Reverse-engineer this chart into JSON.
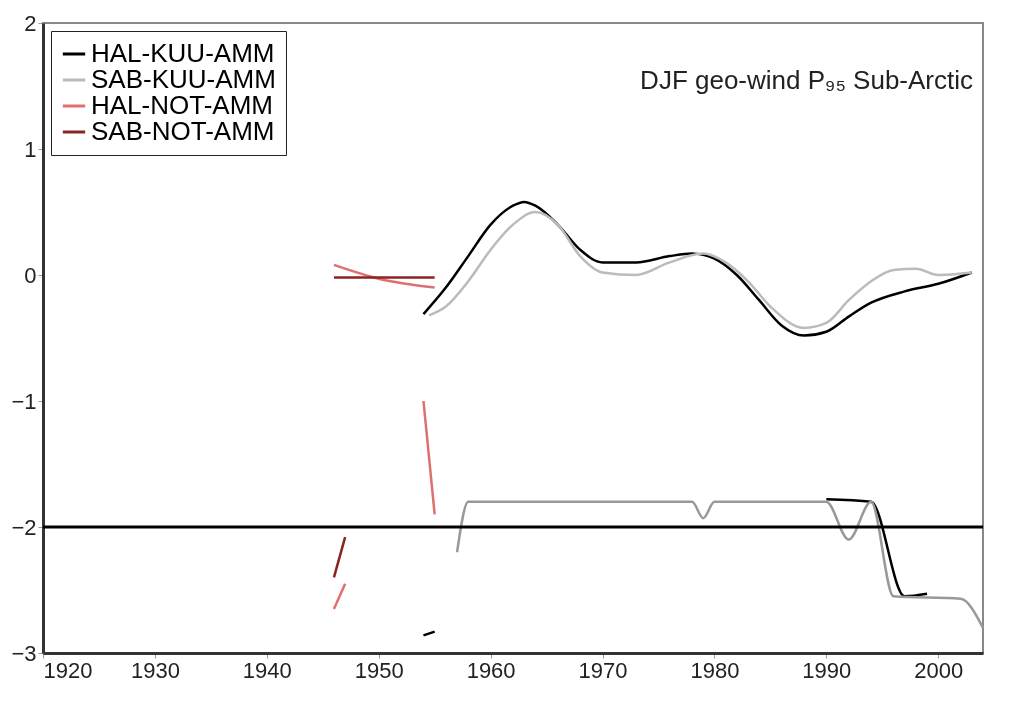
{
  "chart_data": {
    "type": "line",
    "annotations": [
      "DJF geo-wind P₉₅ Sub-Arctic"
    ],
    "xlim": [
      1920,
      2004
    ],
    "xticks": [
      1920,
      1930,
      1940,
      1950,
      1960,
      1970,
      1980,
      1990,
      2000
    ],
    "ylim": [
      -3,
      2
    ],
    "yticks": [
      -3,
      -2,
      -1,
      0,
      1,
      2
    ],
    "grid": false,
    "legend": "top left",
    "line_style": "solid",
    "marker": "none",
    "ref_lines": [
      {
        "axis": "y",
        "value": -2,
        "color": "#000000"
      }
    ],
    "series": [
      {
        "name": "HAL-KUU-AMM",
        "color": "#000000",
        "x": [
          1954,
          1956,
          1958,
          1960,
          1962,
          1963,
          1964,
          1966,
          1968,
          1970,
          1973,
          1976,
          1978,
          1980,
          1982,
          1984,
          1986,
          1988,
          1990,
          1992,
          1994,
          1997,
          2000,
          2003
        ],
        "values": [
          -0.31,
          -0.1,
          0.15,
          0.4,
          0.55,
          0.58,
          0.55,
          0.4,
          0.2,
          0.1,
          0.1,
          0.15,
          0.17,
          0.13,
          0.0,
          -0.2,
          -0.4,
          -0.48,
          -0.45,
          -0.33,
          -0.22,
          -0.13,
          -0.07,
          0.02
        ]
      },
      {
        "name": "SAB-KUU-AMM",
        "color": "#bbbbbb",
        "x": [
          1954.5,
          1956,
          1958,
          1960,
          1962,
          1964,
          1966,
          1968,
          1970,
          1973,
          1976,
          1979,
          1981,
          1983,
          1985,
          1988,
          1990,
          1992,
          1994,
          1996,
          1998,
          2000,
          2003
        ],
        "values": [
          -0.32,
          -0.25,
          -0.05,
          0.2,
          0.4,
          0.5,
          0.4,
          0.15,
          0.02,
          0.0,
          0.1,
          0.17,
          0.1,
          -0.05,
          -0.25,
          -0.42,
          -0.38,
          -0.2,
          -0.05,
          0.04,
          0.05,
          0.0,
          0.02
        ]
      },
      {
        "name": "HAL-NOT-AMM",
        "color": "#e07070",
        "x": [
          1946,
          1950,
          1955
        ],
        "values": [
          0.08,
          -0.03,
          -0.1
        ]
      },
      {
        "name": "SAB-NOT-AMM",
        "color": "#8b2323",
        "x": [
          1946,
          1955
        ],
        "values": [
          -0.02,
          -0.02
        ]
      },
      {
        "color": "#e07070",
        "x": [
          1954,
          1955
        ],
        "values": [
          -1.0,
          -1.9
        ]
      },
      {
        "color": "#8b2323",
        "x": [
          1946,
          1947
        ],
        "values": [
          -2.4,
          -2.08
        ]
      },
      {
        "color": "#e07070",
        "x": [
          1946,
          1947
        ],
        "values": [
          -2.65,
          -2.45
        ]
      },
      {
        "color": "#000000",
        "x": [
          1954,
          1955
        ],
        "values": [
          -2.86,
          -2.83
        ]
      },
      {
        "color": "#000000",
        "x": [
          1990,
          1994,
          1997,
          1999
        ],
        "values": [
          -1.78,
          -1.8,
          -2.55,
          -2.53
        ]
      },
      {
        "color": "#999999",
        "x": [
          1957,
          1958,
          1970,
          1978,
          1979,
          1980,
          1990,
          1992,
          1994,
          1996,
          2002,
          2004
        ],
        "values": [
          -2.2,
          -1.8,
          -1.8,
          -1.8,
          -1.93,
          -1.8,
          -1.8,
          -2.1,
          -1.8,
          -2.55,
          -2.57,
          -2.8
        ]
      }
    ]
  }
}
